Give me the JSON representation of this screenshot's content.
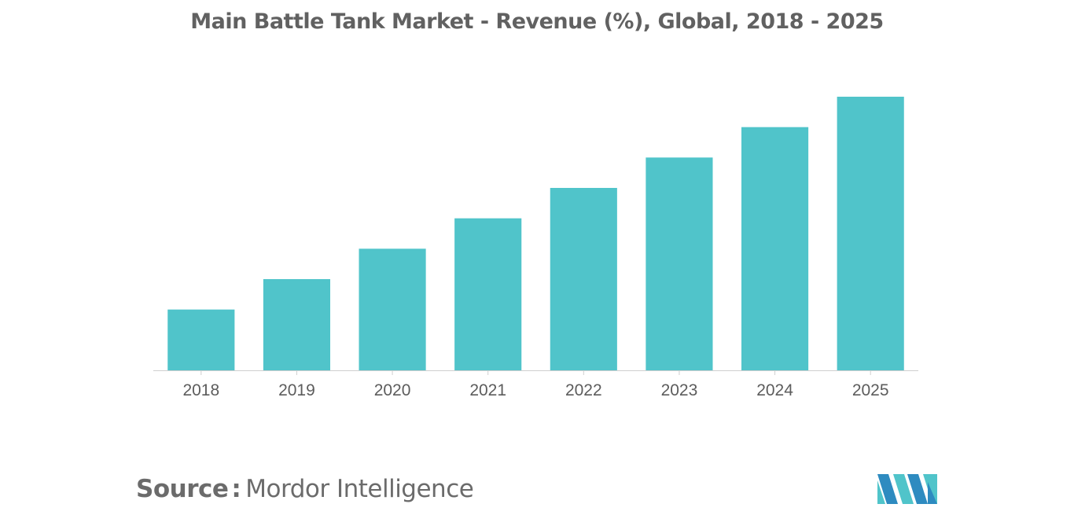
{
  "chart_data": {
    "type": "bar",
    "title": "Main Battle Tank Market - Revenue (%), Global, 2018 - 2025",
    "categories": [
      "2018",
      "2019",
      "2020",
      "2021",
      "2022",
      "2023",
      "2024",
      "2025"
    ],
    "values": [
      20,
      30,
      40,
      50,
      60,
      70,
      80,
      90
    ],
    "ylim": [
      0,
      90
    ],
    "xlabel": "",
    "ylabel": "",
    "grid": false,
    "legend": "none",
    "bar_color": "#50C4CA"
  },
  "source": {
    "label": "Source",
    "separator": ":",
    "name": "Mordor Intelligence"
  },
  "logo": {
    "icon": "mordor-intelligence-logo",
    "colors": [
      "#2E8BC0",
      "#50C4CA"
    ]
  }
}
